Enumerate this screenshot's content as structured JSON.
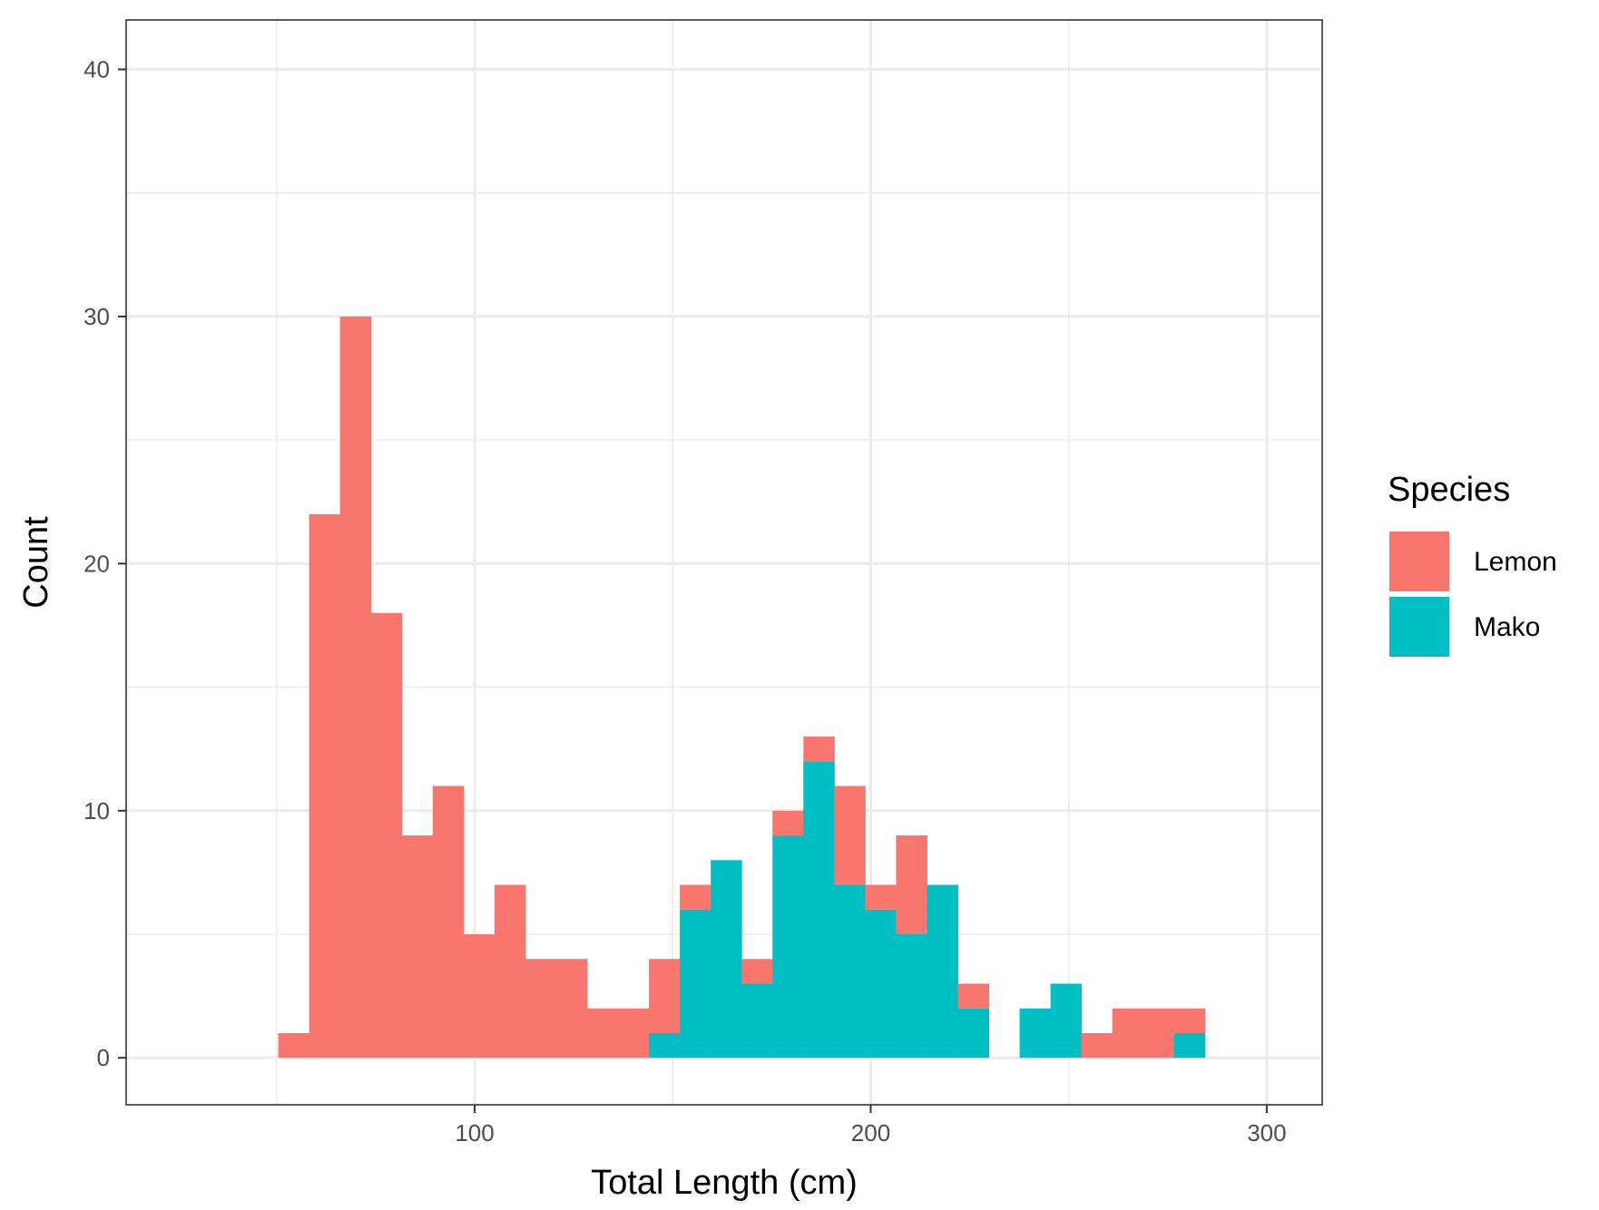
{
  "chart_data": {
    "type": "bar",
    "subtype": "stacked-histogram",
    "title": "",
    "xlabel": "Total Length (cm)",
    "ylabel": "Count",
    "xlim": [
      12,
      314
    ],
    "ylim": [
      -1.9,
      42
    ],
    "x_ticks": [
      100,
      200,
      300
    ],
    "y_ticks": [
      0,
      10,
      20,
      30,
      40
    ],
    "grid": true,
    "legend": {
      "title": "Species",
      "position": "right"
    },
    "bin_width": 7.8,
    "bins_start": [
      50.4,
      58.2,
      66.0,
      73.8,
      81.6,
      89.4,
      97.2,
      105.0,
      112.8,
      120.6,
      128.4,
      136.2,
      144.0,
      151.8,
      159.6,
      167.4,
      175.2,
      183.0,
      190.8,
      198.6,
      206.4,
      214.2,
      222.0,
      229.8,
      237.6,
      245.4,
      253.2,
      261.0,
      268.8,
      276.6
    ],
    "series": [
      {
        "name": "Mako",
        "color": "#00BFC4",
        "values": [
          0,
          0,
          0,
          0,
          0,
          0,
          0,
          0,
          0,
          0,
          0,
          0,
          1,
          6,
          8,
          3,
          9,
          12,
          7,
          6,
          5,
          7,
          2,
          0,
          2,
          3,
          0,
          0,
          0,
          1
        ]
      },
      {
        "name": "Lemon",
        "color": "#F8766D",
        "values": [
          1,
          22,
          30,
          18,
          9,
          11,
          5,
          7,
          4,
          4,
          2,
          2,
          3,
          1,
          0,
          1,
          1,
          1,
          4,
          1,
          4,
          0,
          1,
          0,
          0,
          0,
          1,
          2,
          2,
          1
        ]
      }
    ]
  }
}
